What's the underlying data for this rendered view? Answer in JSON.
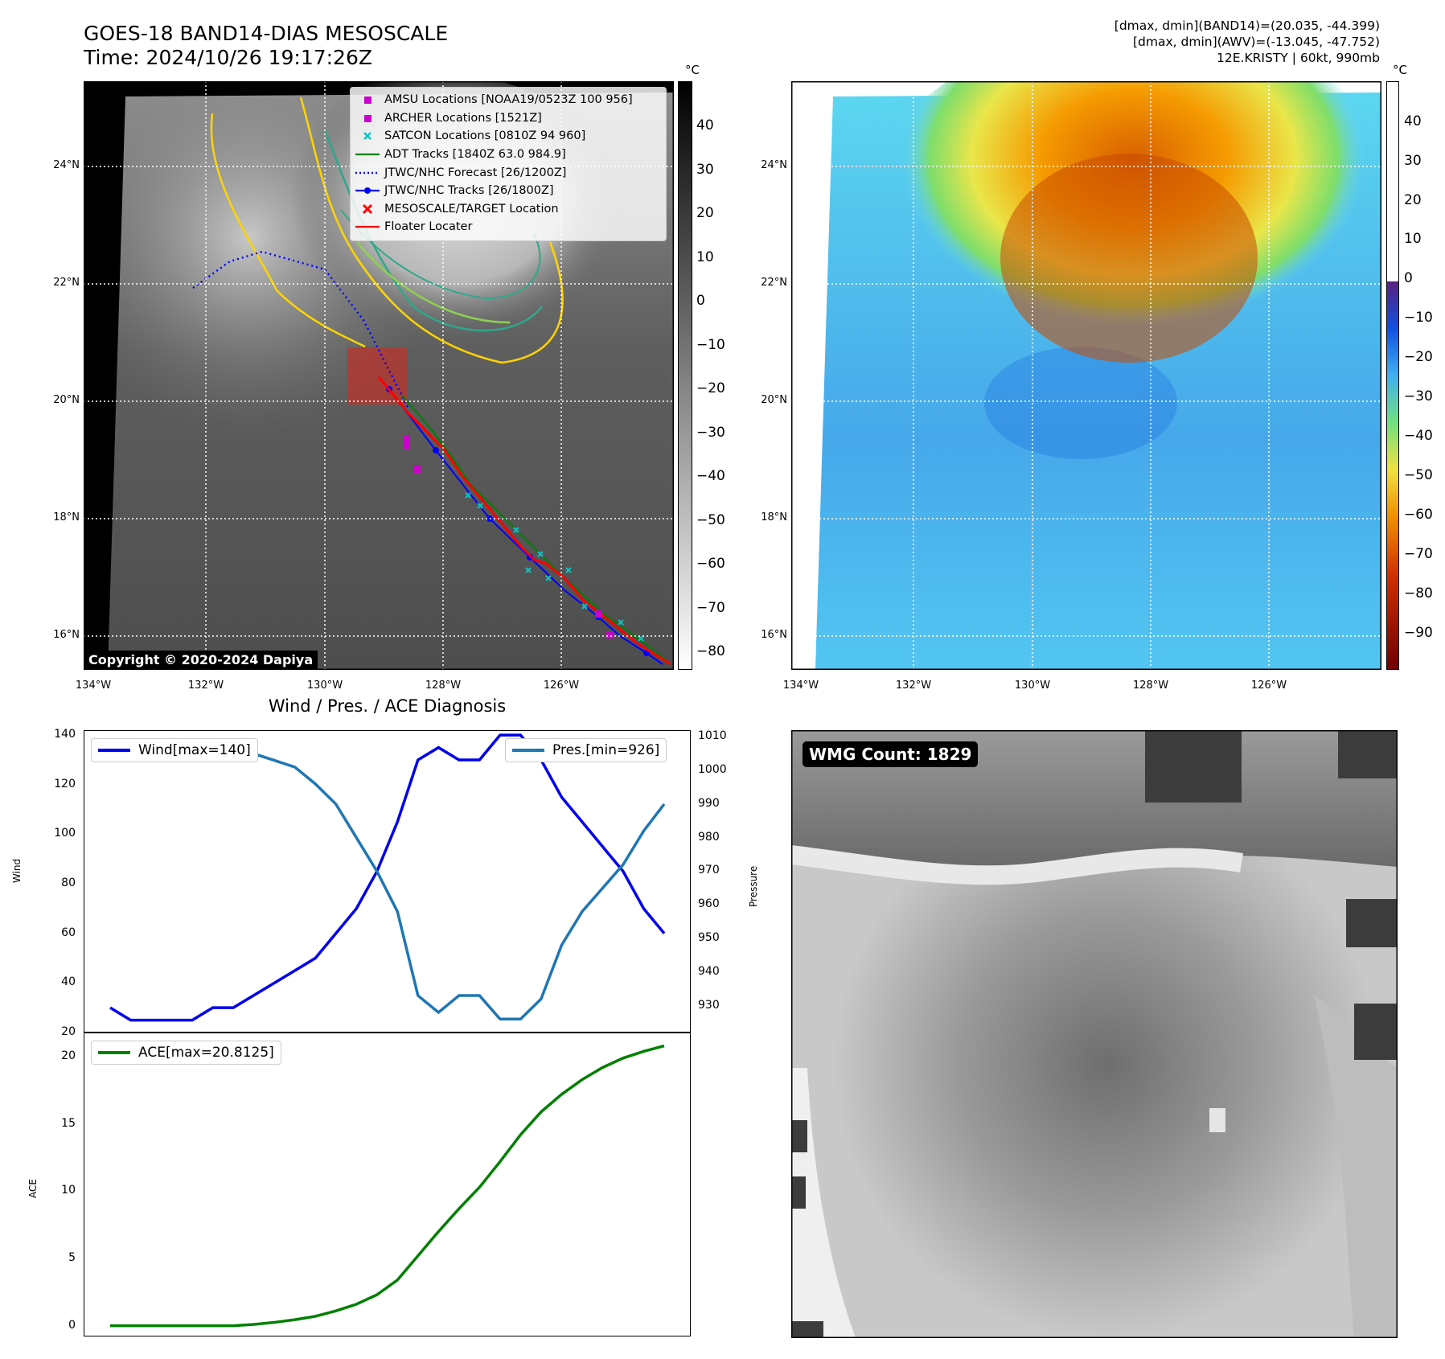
{
  "header": {
    "title_line1": "GOES-18 BAND14-DIAS MESOSCALE",
    "title_line2": "Time: 2024/10/26 19:17:26Z",
    "info_line1": "[dmax, dmin](BAND14)=(20.035, -44.399)",
    "info_line2": "[dmax, dmin](AWV)=(-13.045, -47.752)",
    "info_line3": "12E.KRISTY | 60kt, 990mb"
  },
  "map_axes": {
    "lon_ticks": [
      "134°W",
      "132°W",
      "130°W",
      "128°W",
      "126°W"
    ],
    "lat_ticks": [
      "24°N",
      "22°N",
      "20°N",
      "18°N",
      "16°N"
    ]
  },
  "map_left": {
    "copyright": "Copyright © 2020-2024 Dapiya",
    "legend": [
      {
        "label": "AMSU Locations [NOAA19/0523Z 100 956]",
        "symbol": "square",
        "color": "#cc00cc"
      },
      {
        "label": "ARCHER Locations [1521Z]",
        "symbol": "square",
        "color": "#cc00cc"
      },
      {
        "label": "SATCON Locations [0810Z 94 960]",
        "symbol": "cross",
        "color": "#00c8c8"
      },
      {
        "label": "ADT Tracks [1840Z 63.0 984.9]",
        "symbol": "line",
        "color": "#008000"
      },
      {
        "label": "JTWC/NHC Forecast [26/1200Z]",
        "symbol": "dotted",
        "color": "#0000ff"
      },
      {
        "label": "JTWC/NHC Tracks [26/1800Z]",
        "symbol": "line-dot",
        "color": "#0000ff"
      },
      {
        "label": "MESOSCALE/TARGET Location",
        "symbol": "x",
        "color": "#ff0000"
      },
      {
        "label": "Floater Locater",
        "symbol": "line",
        "color": "#ff0000"
      }
    ],
    "colorbar_unit": "°C",
    "colorbar_ticks": [
      "40",
      "30",
      "20",
      "10",
      "0",
      "−10",
      "−20",
      "−30",
      "−40",
      "−50",
      "−60",
      "−70",
      "−80"
    ]
  },
  "map_right": {
    "colorbar_unit": "°C",
    "colorbar_ticks": [
      "40",
      "30",
      "20",
      "10",
      "0",
      "−10",
      "−20",
      "−30",
      "−40",
      "−50",
      "−60",
      "−70",
      "−80",
      "−90"
    ]
  },
  "chart_data": [
    {
      "type": "line",
      "title": "Wind / Pres. / ACE Diagnosis",
      "ylabel": "Wind",
      "y2label": "Pressure",
      "ylim": [
        20,
        142
      ],
      "y2lim": [
        922,
        1012
      ],
      "yticks": [
        "20",
        "40",
        "60",
        "80",
        "100",
        "120",
        "140"
      ],
      "y2ticks": [
        "930",
        "940",
        "950",
        "960",
        "970",
        "980",
        "990",
        "1000",
        "1010"
      ],
      "series": [
        {
          "name": "Wind[max=140]",
          "axis": "left",
          "color": "#0000ee",
          "values": [
            30,
            25,
            25,
            25,
            25,
            30,
            30,
            35,
            40,
            45,
            50,
            60,
            70,
            85,
            105,
            130,
            135,
            130,
            130,
            140,
            140,
            130,
            115,
            105,
            95,
            85,
            70,
            60
          ]
        },
        {
          "name": "Pres.[min=926]",
          "axis": "right",
          "color": "#1f77b4",
          "values": [
            1006,
            1006,
            1006,
            1007,
            1007,
            1007,
            1005,
            1005,
            1003,
            1001,
            996,
            990,
            980,
            970,
            958,
            933,
            928,
            933,
            933,
            926,
            926,
            932,
            948,
            958,
            965,
            972,
            982,
            990
          ]
        }
      ]
    },
    {
      "type": "line",
      "ylabel": "ACE",
      "ylim": [
        -0.8,
        21.8
      ],
      "yticks": [
        "0",
        "5",
        "10",
        "15",
        "20"
      ],
      "series": [
        {
          "name": "ACE[max=20.8125]",
          "color": "#008000",
          "values": [
            0,
            0,
            0,
            0,
            0,
            0,
            0,
            0.1,
            0.25,
            0.45,
            0.7,
            1.1,
            1.6,
            2.3,
            3.4,
            5.2,
            7.0,
            8.7,
            10.3,
            12.2,
            14.2,
            15.9,
            17.2,
            18.3,
            19.2,
            19.9,
            20.4,
            20.8125
          ]
        }
      ]
    }
  ],
  "wmg_panel": {
    "count_label": "WMG Count: 1829"
  }
}
